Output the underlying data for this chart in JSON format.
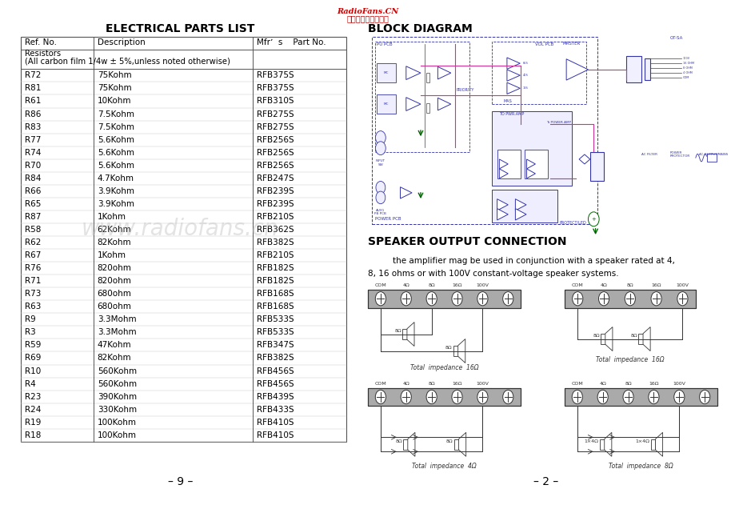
{
  "page_bg": "#ffffff",
  "header_text1": "RadioFans.CN",
  "header_text2": "收音机爱好者资料库",
  "header_color": "#cc0000",
  "left_title": "ELECTRICAL PARTS LIST",
  "right_title1": "BLOCK DIAGRAM",
  "right_title2": "SPEAKER OUTPUT CONNECTION",
  "speaker_desc1": "    the amplifier mag be used in conjunction with a speaker rated at 4,",
  "speaker_desc2": "8, 16 ohms or with 100V constant-voltage speaker systems.",
  "page_left": "– 9 –",
  "page_right": "– 2 –",
  "table_headers": [
    "Ref. No.",
    "Description",
    "Mfrʼ  s    Part No."
  ],
  "table_data": [
    [
      "R72",
      "75Kohm",
      "RFB375S"
    ],
    [
      "R81",
      "75Kohm",
      "RFB375S"
    ],
    [
      "R61",
      "10Kohm",
      "RFB310S"
    ],
    [
      "R86",
      "7.5Kohm",
      "RFB275S"
    ],
    [
      "R83",
      "7.5Kohm",
      "RFB275S"
    ],
    [
      "R77",
      "5.6Kohm",
      "RFB256S"
    ],
    [
      "R74",
      "5.6Kohm",
      "RFB256S"
    ],
    [
      "R70",
      "5.6Kohm",
      "RFB256S"
    ],
    [
      "R84",
      "4.7Kohm",
      "RFB247S"
    ],
    [
      "R66",
      "3.9Kohm",
      "RFB239S"
    ],
    [
      "R65",
      "3.9Kohm",
      "RFB239S"
    ],
    [
      "R87",
      "1Kohm",
      "RFB210S"
    ],
    [
      "R58",
      "62Kohm",
      "RFB362S"
    ],
    [
      "R62",
      "82Kohm",
      "RFB382S"
    ],
    [
      "R67",
      "1Kohm",
      "RFB210S"
    ],
    [
      "R76",
      "820ohm",
      "RFB182S"
    ],
    [
      "R71",
      "820ohm",
      "RFB182S"
    ],
    [
      "R73",
      "680ohm",
      "RFB168S"
    ],
    [
      "R63",
      "680ohm",
      "RFB168S"
    ],
    [
      "R9",
      "3.3Mohm",
      "RFB533S"
    ],
    [
      "R3",
      "3.3Mohm",
      "RFB533S"
    ],
    [
      "R59",
      "47Kohm",
      "RFB347S"
    ],
    [
      "R69",
      "82Kohm",
      "RFB382S"
    ],
    [
      "R10",
      "560Kohm",
      "RFB456S"
    ],
    [
      "R4",
      "560Kohm",
      "RFB456S"
    ],
    [
      "R23",
      "390Kohm",
      "RFB439S"
    ],
    [
      "R24",
      "330Kohm",
      "RFB433S"
    ],
    [
      "R19",
      "100Kohm",
      "RFB410S"
    ],
    [
      "R18",
      "100Kohm",
      "RFB410S"
    ]
  ],
  "watermark": "www.radiofans.cn",
  "dc": "#3333aa",
  "dc2": "#cc3399",
  "green": "#006600"
}
